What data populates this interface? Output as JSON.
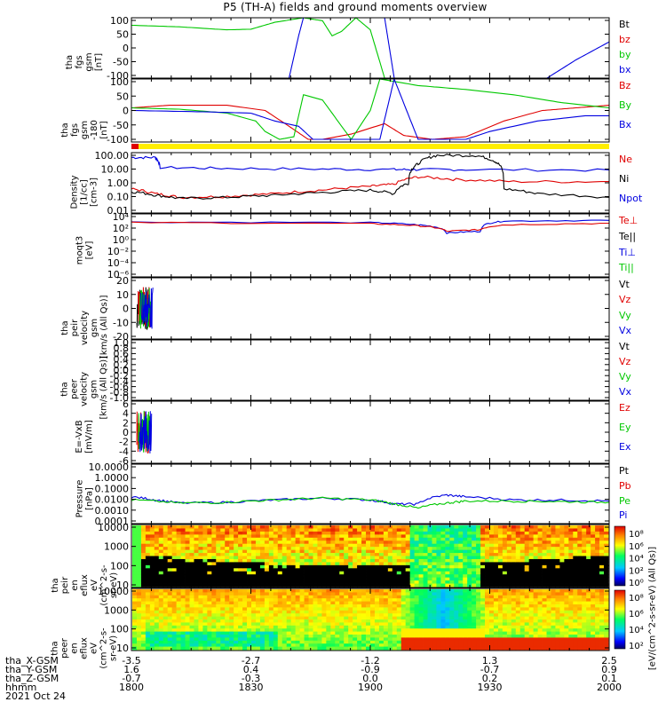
{
  "title": "P5 (TH-A) fields and ground moments overview",
  "colors": {
    "black": "#000000",
    "red": "#e00000",
    "green": "#00c800",
    "blue": "#0000e0",
    "yellow": "#ffee00"
  },
  "chart_data": [
    {
      "type": "line",
      "panel": "tha_fgs_gsm",
      "ylabel": "tha\nfgs\ngsm\n[nT]",
      "ylim": [
        -100,
        100
      ],
      "yticks": [
        "100",
        "50",
        "0",
        "-50",
        "-100"
      ],
      "legend": [
        {
          "name": "Bt",
          "color": "#000000"
        },
        {
          "name": "bz",
          "color": "#e00000"
        },
        {
          "name": "by",
          "color": "#00c800"
        },
        {
          "name": "bx",
          "color": "#0000e0"
        }
      ],
      "series": [
        {
          "name": "by",
          "x_frac": [
            0.0,
            0.1,
            0.2,
            0.25,
            0.3,
            0.36,
            0.4,
            0.42,
            0.44,
            0.47,
            0.5,
            0.53
          ],
          "values": [
            75,
            70,
            60,
            62,
            85,
            100,
            90,
            40,
            55,
            100,
            60,
            -100
          ]
        },
        {
          "name": "bx",
          "x_frac": [
            0.33,
            0.35,
            0.36,
            0.53,
            0.54,
            0.55,
            0.87,
            0.93,
            1.0
          ],
          "values": [
            -100,
            40,
            100,
            100,
            0,
            -100,
            -100,
            -40,
            20
          ]
        }
      ]
    },
    {
      "type": "line",
      "panel": "tha_fgs_gsm_180",
      "ylabel": "tha\nfgs\ngsm\n-180\n[nT]",
      "ylim": [
        -120,
        120
      ],
      "yticks": [
        "100",
        "50",
        "0",
        "-50",
        "-100"
      ],
      "legend": [
        {
          "name": "Bz",
          "color": "#e00000"
        },
        {
          "name": "By",
          "color": "#00c800"
        },
        {
          "name": "Bx",
          "color": "#0000e0"
        }
      ],
      "series": [
        {
          "name": "Bz",
          "x_frac": [
            0.0,
            0.08,
            0.2,
            0.28,
            0.33,
            0.37,
            0.4,
            0.46,
            0.53,
            0.57,
            0.63,
            0.7,
            0.78,
            0.86,
            0.93,
            1.0
          ],
          "values": [
            10,
            20,
            20,
            0,
            -60,
            -110,
            -110,
            -90,
            -50,
            -95,
            -110,
            -100,
            -40,
            0,
            10,
            20
          ]
        },
        {
          "name": "By",
          "x_frac": [
            0.0,
            0.1,
            0.2,
            0.26,
            0.28,
            0.31,
            0.34,
            0.36,
            0.4,
            0.46,
            0.5,
            0.52,
            0.6,
            0.7,
            0.8,
            0.9,
            1.0
          ],
          "values": [
            10,
            5,
            -10,
            -40,
            -80,
            -110,
            -100,
            60,
            40,
            -110,
            0,
            120,
            95,
            80,
            60,
            30,
            10
          ]
        },
        {
          "name": "Bx",
          "x_frac": [
            0.0,
            0.15,
            0.25,
            0.3,
            0.35,
            0.38,
            0.42,
            0.52,
            0.55,
            0.6,
            0.66,
            0.7,
            0.75,
            0.85,
            0.95,
            1.0
          ],
          "values": [
            0,
            -5,
            -10,
            -40,
            -60,
            -110,
            -110,
            -110,
            120,
            -110,
            -110,
            -110,
            -80,
            -40,
            -20,
            -20
          ]
        }
      ]
    },
    {
      "type": "line",
      "panel": "density",
      "ylabel": "Density\n[1/cc]\n[cm-3]",
      "yscale": "log",
      "ylim": [
        0.005,
        500
      ],
      "yticks": [
        "100.00",
        "10.00",
        "1.00",
        "0.10",
        "0.01"
      ],
      "legend": [
        {
          "name": "Ne",
          "color": "#e00000"
        },
        {
          "name": "Ni",
          "color": "#000000"
        },
        {
          "name": "Npot",
          "color": "#0000e0"
        }
      ],
      "series": [
        {
          "name": "Npot",
          "x_frac": [
            0.0,
            0.05,
            0.06,
            0.2,
            0.4,
            0.55,
            0.6,
            0.7,
            1.0
          ],
          "values": [
            200,
            200,
            30,
            25,
            22,
            20,
            20,
            20,
            18
          ]
        },
        {
          "name": "Ne",
          "x_frac": [
            0.0,
            0.05,
            0.1,
            0.2,
            0.3,
            0.4,
            0.5,
            0.55,
            0.6,
            0.68,
            0.8,
            1.0
          ],
          "values": [
            0.5,
            0.2,
            0.1,
            0.12,
            0.2,
            0.4,
            0.8,
            1.2,
            5,
            3,
            2,
            2
          ]
        },
        {
          "name": "Ni",
          "x_frac": [
            0.0,
            0.05,
            0.1,
            0.2,
            0.3,
            0.4,
            0.5,
            0.55,
            0.58,
            0.6,
            0.64,
            0.72,
            0.76,
            0.78,
            0.85,
            1.0
          ],
          "values": [
            0.3,
            0.15,
            0.08,
            0.1,
            0.15,
            0.25,
            0.4,
            0.2,
            1.5,
            60,
            300,
            300,
            100,
            0.5,
            0.2,
            0.1
          ]
        }
      ]
    },
    {
      "type": "line",
      "panel": "moqt3",
      "ylabel": "moqt3\n[eV]",
      "yscale": "log",
      "ylim": [
        1e-07,
        30000.0
      ],
      "yticks": [
        "10⁴",
        "10²",
        "10⁰",
        "10⁻²",
        "10⁻⁴",
        "10⁻⁶"
      ],
      "legend": [
        {
          "name": "Te⊥",
          "color": "#e00000"
        },
        {
          "name": "Te||",
          "color": "#000000"
        },
        {
          "name": "Ti⊥",
          "color": "#0000e0"
        },
        {
          "name": "Ti||",
          "color": "#00c800"
        }
      ],
      "series": [
        {
          "name": "Ti",
          "x_frac": [
            0.0,
            0.5,
            0.6,
            0.66,
            0.73,
            0.78,
            1.0
          ],
          "values": [
            1000,
            800,
            300,
            10,
            20,
            1500,
            2000
          ]
        },
        {
          "name": "Te",
          "x_frac": [
            0.0,
            0.5,
            0.6,
            0.66,
            0.73,
            0.78,
            1.0
          ],
          "values": [
            800,
            500,
            200,
            20,
            40,
            300,
            600
          ]
        }
      ]
    },
    {
      "type": "line",
      "panel": "peir_velocity",
      "ylabel": "tha\npeir\nvelocity\ngsm\n[km/s (All Qs)]",
      "ylim": [
        -20,
        20
      ],
      "yticks": [
        "20",
        "10",
        "0",
        "-10",
        "-20"
      ],
      "legend": [
        {
          "name": "Vt",
          "color": "#000000"
        },
        {
          "name": "Vz",
          "color": "#e00000"
        },
        {
          "name": "Vy",
          "color": "#00c800"
        },
        {
          "name": "Vx",
          "color": "#0000e0"
        }
      ]
    },
    {
      "type": "line",
      "panel": "peer_velocity",
      "ylabel": "tha\npeer\nvelocity\ngsm\n[km/s (All Qs)]",
      "ylim": [
        -1,
        1
      ],
      "yticks": [
        "1.0",
        "0.8",
        "0.6",
        "0.4",
        "0.2",
        "0.0",
        "-0.2",
        "-0.4",
        "-0.6",
        "-0.8",
        "-1.0"
      ],
      "legend": [
        {
          "name": "Vt",
          "color": "#000000"
        },
        {
          "name": "Vz",
          "color": "#e00000"
        },
        {
          "name": "Vy",
          "color": "#00c800"
        },
        {
          "name": "Vx",
          "color": "#0000e0"
        }
      ]
    },
    {
      "type": "line",
      "panel": "efield",
      "ylabel": "E=-VxB\n[mV/m]",
      "ylim": [
        -6,
        6
      ],
      "yticks": [
        "6",
        "4",
        "2",
        "0",
        "-2",
        "-4",
        "-6"
      ],
      "legend": [
        {
          "name": "Ez",
          "color": "#e00000"
        },
        {
          "name": "Ey",
          "color": "#00c800"
        },
        {
          "name": "Ex",
          "color": "#0000e0"
        }
      ]
    },
    {
      "type": "line",
      "panel": "pressure",
      "ylabel": "Pressure\n[nPa]",
      "yscale": "log",
      "ylim": [
        5e-05,
        30
      ],
      "yticks": [
        "10.0000",
        "1.0000",
        "0.1000",
        "0.0100",
        "0.0010",
        "0.0001"
      ],
      "legend": [
        {
          "name": "Pt",
          "color": "#000000"
        },
        {
          "name": "Pb",
          "color": "#e00000"
        },
        {
          "name": "Pe",
          "color": "#00c800"
        },
        {
          "name": "Pi",
          "color": "#0000e0"
        }
      ],
      "series": [
        {
          "name": "Pi",
          "x_frac": [
            0.0,
            0.05,
            0.1,
            0.2,
            0.3,
            0.4,
            0.5,
            0.55,
            0.6,
            0.66,
            0.7,
            0.8,
            0.9,
            1.0
          ],
          "values": [
            0.02,
            0.01,
            0.005,
            0.006,
            0.01,
            0.015,
            0.01,
            0.004,
            0.004,
            0.03,
            0.02,
            0.01,
            0.01,
            0.008
          ]
        },
        {
          "name": "Pe",
          "x_frac": [
            0.0,
            0.1,
            0.2,
            0.3,
            0.4,
            0.5,
            0.55,
            0.6,
            0.66,
            0.7,
            0.8,
            0.9,
            1.0
          ],
          "values": [
            0.01,
            0.005,
            0.006,
            0.01,
            0.015,
            0.01,
            0.004,
            0.0015,
            0.005,
            0.008,
            0.008,
            0.007,
            0.006
          ]
        }
      ]
    },
    {
      "type": "heatmap",
      "panel": "peir_en_eflux",
      "ylabel": "tha\npeir\nen\neflux\neV\n(cm^2-s-\nsr-eV)",
      "yscale": "log",
      "ylim": [
        5,
        30000
      ],
      "yticks": [
        "10000",
        "1000",
        "100",
        "10"
      ],
      "colorbar_label": "[eV/(cm^2-s-sr-eV) (All Qs)]",
      "colorbar_ticks": [
        "10⁸",
        "10⁶",
        "10⁴",
        "10²",
        "10⁰"
      ]
    },
    {
      "type": "heatmap",
      "panel": "peer_en_eflux",
      "ylabel": "tha\npeer\nen\neflux\neV\n(cm^2-s-\nsr-eV)",
      "yscale": "log",
      "ylim": [
        5,
        30000
      ],
      "yticks": [
        "10000",
        "1000",
        "100",
        "10"
      ],
      "colorbar_label": "[eV/(cm^2-s-sr-eV) (All Qs)]",
      "colorbar_ticks": [
        "10⁸",
        "10⁶",
        "10⁴",
        "10²"
      ]
    }
  ],
  "x_axis": {
    "rows": [
      {
        "label": "tha_X-GSM",
        "values": [
          "-3.5",
          "-2.7",
          "-1.2",
          "1.3",
          "2.5"
        ]
      },
      {
        "label": "tha_Y-GSM",
        "values": [
          "1.6",
          "0.4",
          "-0.9",
          "-0.7",
          "0.9"
        ]
      },
      {
        "label": "tha_Z-GSM",
        "values": [
          "-0.7",
          "-0.3",
          "0.0",
          "0.2",
          "0.1"
        ]
      },
      {
        "label": "hhmm",
        "values": [
          "1800",
          "1830",
          "1900",
          "1930",
          "2000"
        ]
      }
    ],
    "date": "2021 Oct 24"
  }
}
